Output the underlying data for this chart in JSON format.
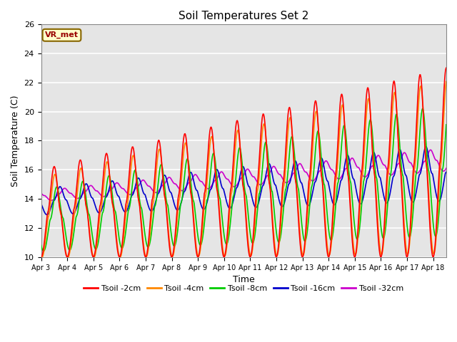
{
  "title": "Soil Temperatures Set 2",
  "xlabel": "Time",
  "ylabel": "Soil Temperature (C)",
  "ylim": [
    10,
    26
  ],
  "xlim_start": 0,
  "xlim_end": 15.5,
  "annotation_text": "VR_met",
  "bg_color": "#e5e5e5",
  "lines": {
    "Tsoil -2cm": {
      "color": "#ff0000",
      "lw": 1.2
    },
    "Tsoil -4cm": {
      "color": "#ff8800",
      "lw": 1.2
    },
    "Tsoil -8cm": {
      "color": "#00cc00",
      "lw": 1.2
    },
    "Tsoil -16cm": {
      "color": "#0000cc",
      "lw": 1.2
    },
    "Tsoil -32cm": {
      "color": "#cc00cc",
      "lw": 1.2
    }
  },
  "tick_labels": [
    "Apr 3",
    "Apr 4",
    "Apr 5",
    "Apr 6",
    "Apr 7",
    "Apr 8",
    "Apr 9",
    "Apr 10",
    "Apr 11",
    "Apr 12",
    "Apr 13",
    "Apr 14",
    "Apr 15",
    "Apr 16",
    "Apr 17",
    "Apr 18"
  ],
  "yticks": [
    10,
    12,
    14,
    16,
    18,
    20,
    22,
    24,
    26
  ]
}
